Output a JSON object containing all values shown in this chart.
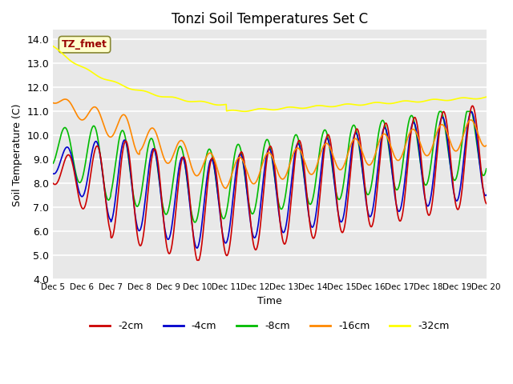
{
  "title": "Tonzi Soil Temperatures Set C",
  "xlabel": "Time",
  "ylabel": "Soil Temperature (C)",
  "ylim": [
    4.0,
    14.4
  ],
  "yticks": [
    4.0,
    5.0,
    6.0,
    7.0,
    8.0,
    9.0,
    10.0,
    11.0,
    12.0,
    13.0,
    14.0
  ],
  "bg_color": "#e8e8e8",
  "legend_entries": [
    "-2cm",
    "-4cm",
    "-8cm",
    "-16cm",
    "-32cm"
  ],
  "legend_colors": [
    "#cc0000",
    "#0000cc",
    "#00bb00",
    "#ff8800",
    "#ffff00"
  ],
  "annotation_text": "TZ_fmet",
  "annotation_color": "#990000",
  "annotation_bg": "#ffffcc",
  "n_points": 1440
}
